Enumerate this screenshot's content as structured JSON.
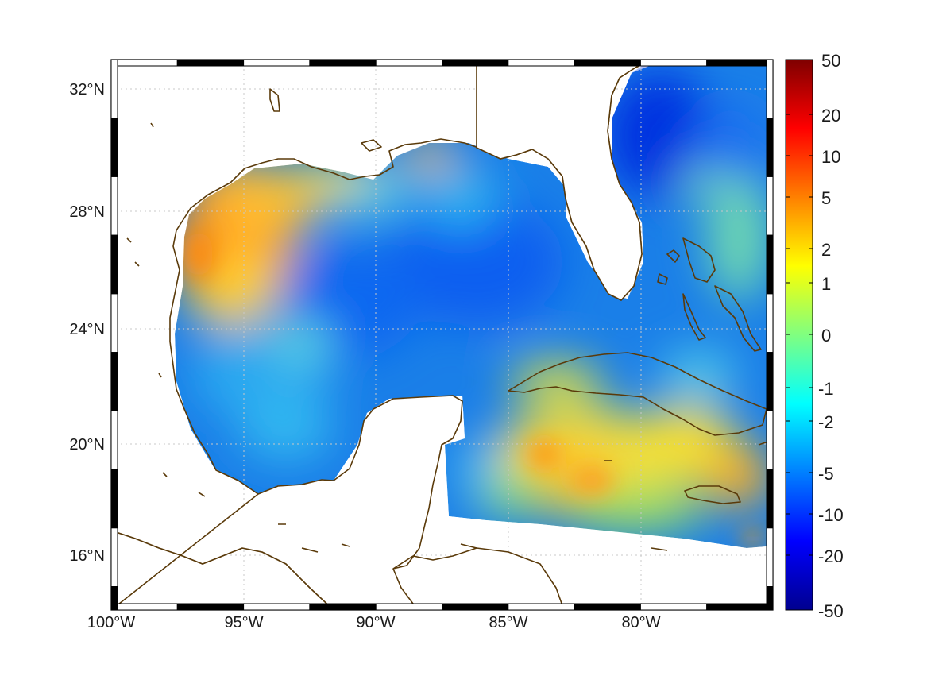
{
  "map": {
    "longitude_labels": [
      "100°W",
      "95°W",
      "90°W",
      "85°W",
      "80°W"
    ],
    "latitude_labels": [
      "32°N",
      "28°N",
      "24°N",
      "20°N",
      "16°N"
    ],
    "extent": {
      "lon_min": -100,
      "lon_max": -75,
      "lat_min": 14.3,
      "lat_max": 33
    },
    "coastline_color": "#5a3a0a",
    "grid": true
  },
  "colorbar": {
    "tick_labels": [
      "50",
      "20",
      "10",
      "5",
      "2",
      "1",
      "0",
      "-1",
      "-2",
      "-5",
      "-10",
      "-20",
      "-50"
    ],
    "colormap": "jet",
    "colors": [
      "#7f0000",
      "#ff0000",
      "#ff8000",
      "#ffff00",
      "#80ff80",
      "#00ffff",
      "#0080ff",
      "#0000ff",
      "#00008f"
    ]
  }
}
